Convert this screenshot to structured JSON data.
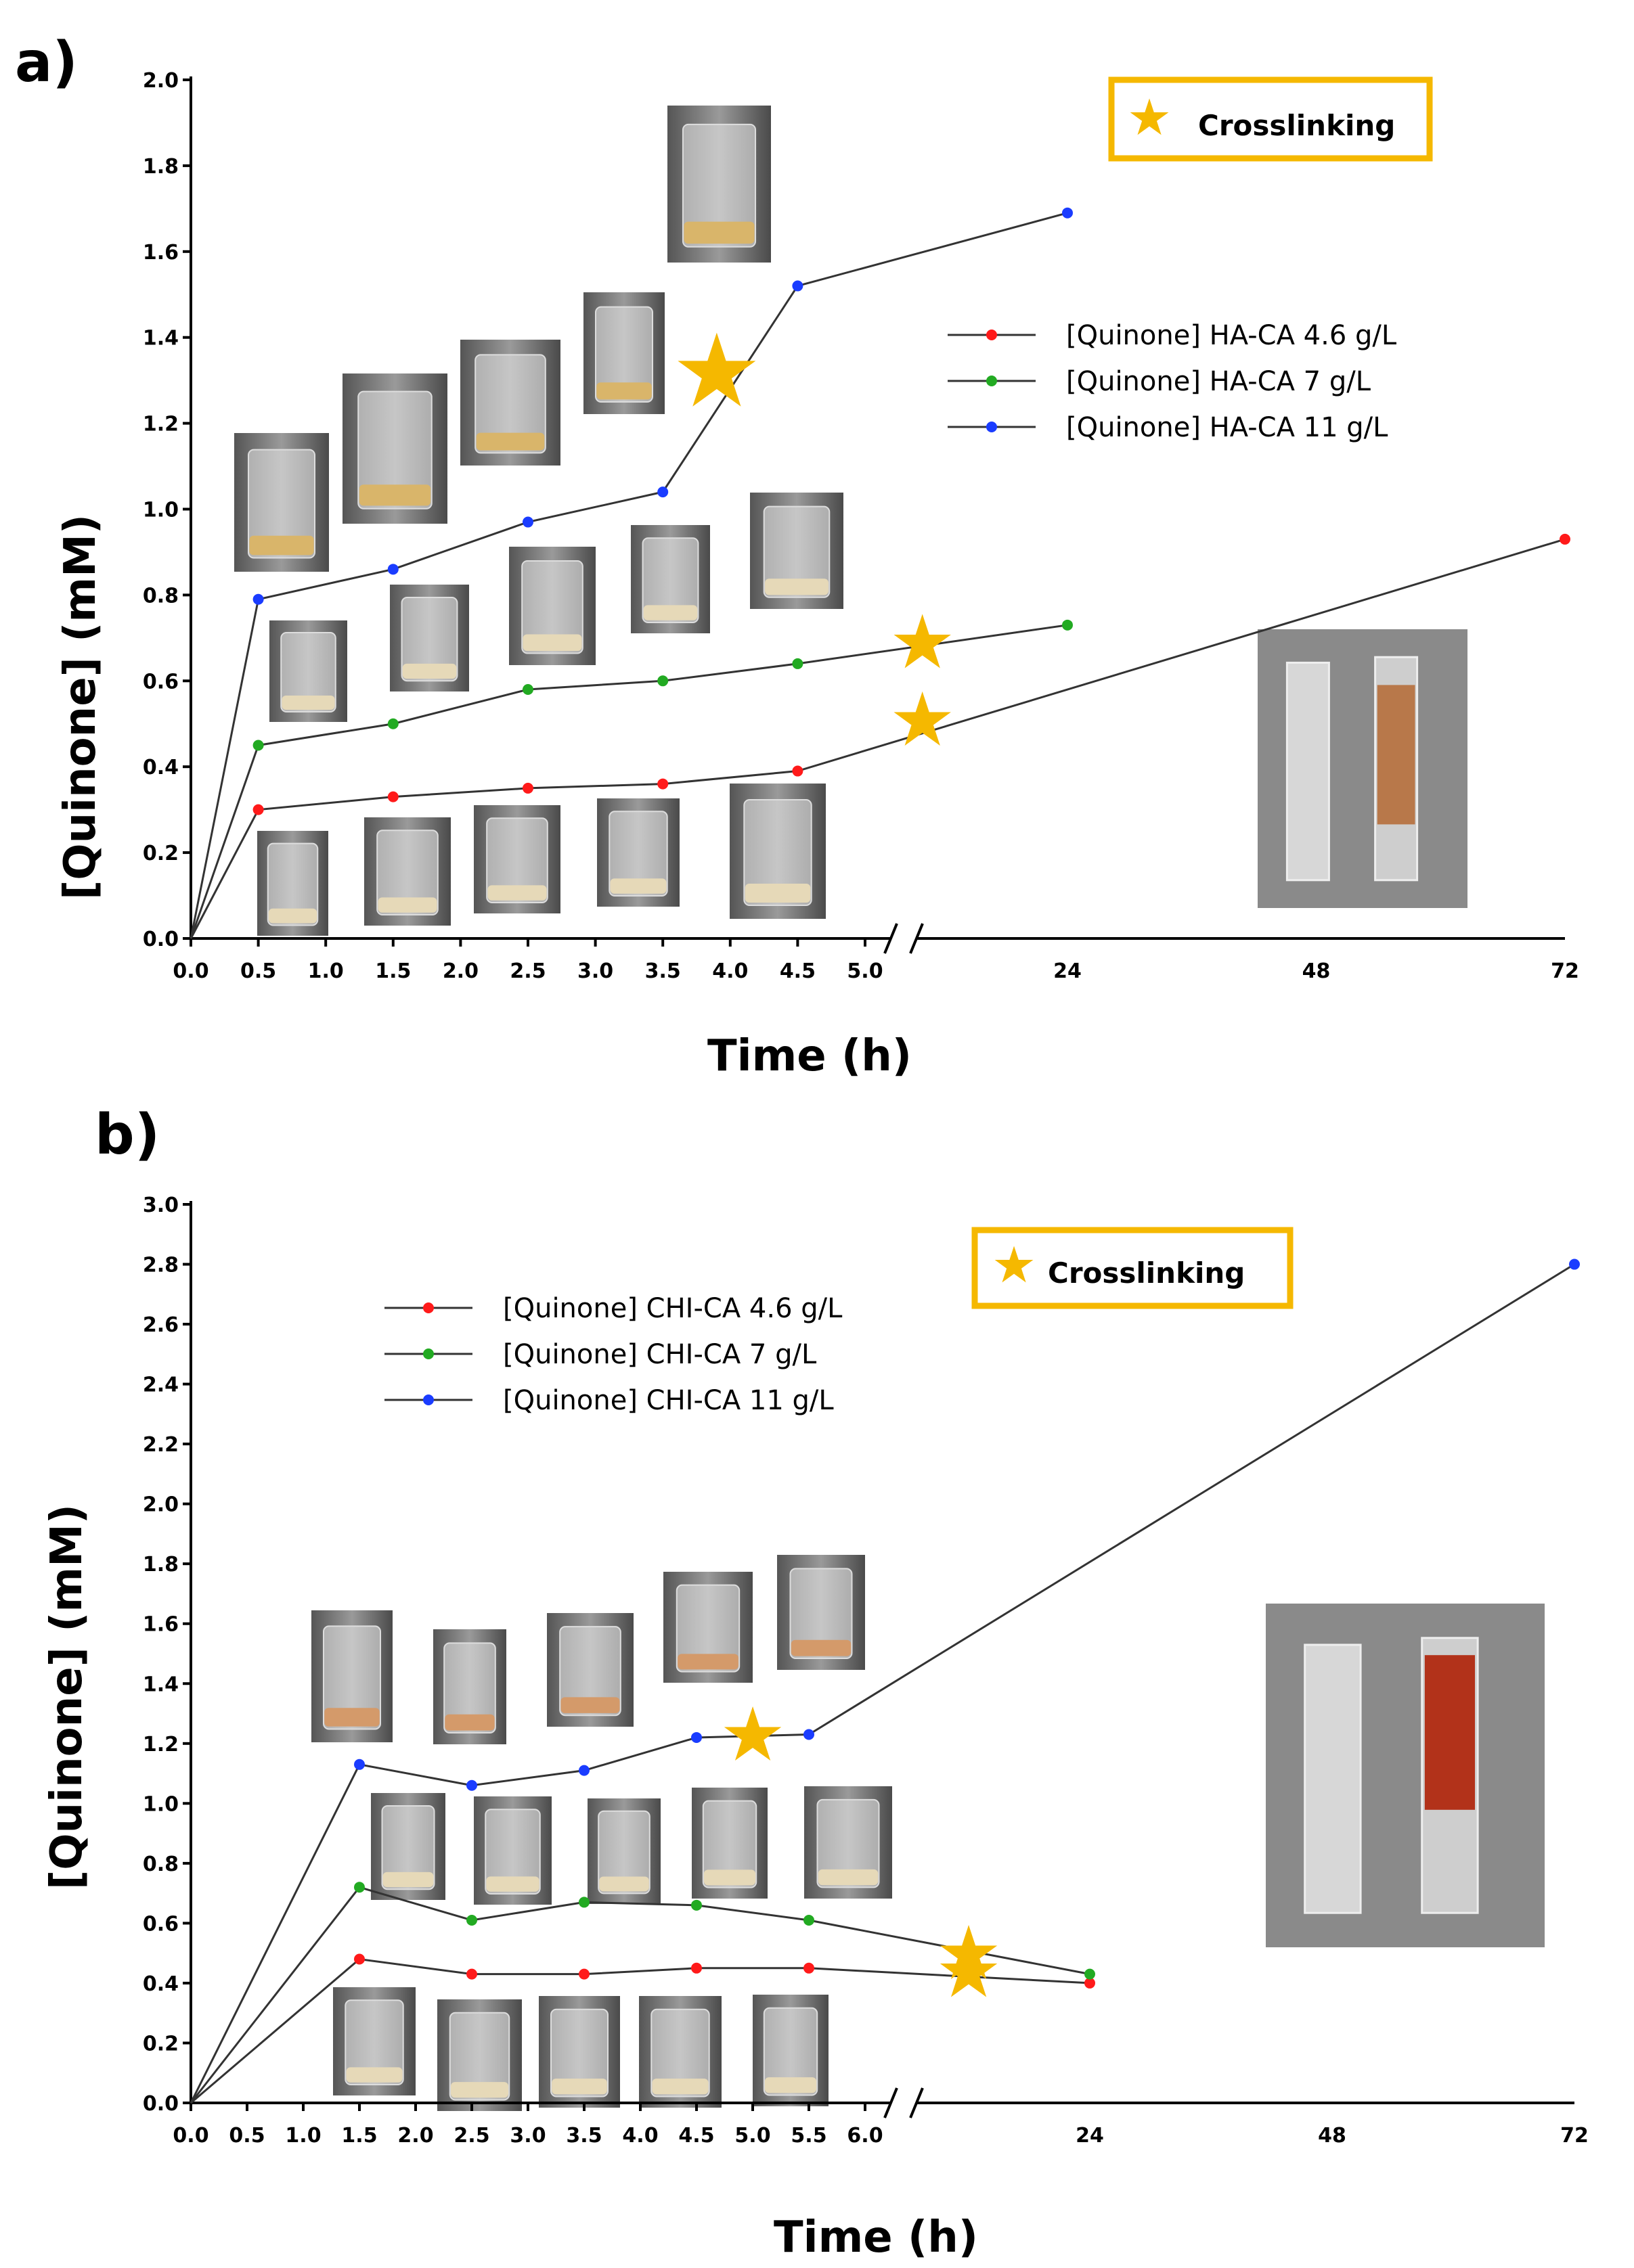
{
  "chart_data": [
    {
      "panel": "a)",
      "type": "line",
      "xlabel": "Time (h)",
      "ylabel": "[Quinone] (mM)",
      "ylim": [
        0,
        2.0
      ],
      "y_ticks": [
        "0.0",
        "0.2",
        "0.4",
        "0.6",
        "0.8",
        "1.0",
        "1.2",
        "1.4",
        "1.6",
        "1.8",
        "2.0"
      ],
      "x_ticks_short": [
        "0.0",
        "0.5",
        "1.0",
        "1.5",
        "2.0",
        "2.5",
        "3.0",
        "3.5",
        "4.0",
        "4.5",
        "5.0"
      ],
      "x_ticks_long": [
        "24",
        "48",
        "72"
      ],
      "x_break": [
        5.0,
        24
      ],
      "annotation": "Crosslinking",
      "series": [
        {
          "name": "[Quinone] HA-CA 4.6 g/L",
          "color": "#ff1a1a",
          "x": [
            0.0,
            0.5,
            1.5,
            2.5,
            3.5,
            4.5,
            72
          ],
          "y": [
            0.0,
            0.3,
            0.33,
            0.35,
            0.36,
            0.39,
            0.93
          ]
        },
        {
          "name": "[Quinone] HA-CA 7 g/L",
          "color": "#22aa22",
          "x": [
            0.0,
            0.5,
            1.5,
            2.5,
            3.5,
            4.5,
            24
          ],
          "y": [
            0.0,
            0.45,
            0.5,
            0.58,
            0.6,
            0.64,
            0.73
          ]
        },
        {
          "name": "[Quinone] HA-CA 11 g/L",
          "color": "#1a3cff",
          "x": [
            0.0,
            0.5,
            1.5,
            2.5,
            3.5,
            4.5,
            24
          ],
          "y": [
            0.0,
            0.79,
            0.86,
            0.97,
            1.04,
            1.52,
            1.69
          ]
        }
      ],
      "crosslinking_markers": [
        {
          "series": "[Quinone] HA-CA 11 g/L",
          "x": 3.9,
          "y": 1.3
        },
        {
          "series": "[Quinone] HA-CA 7 g/L",
          "x": 10,
          "y": 0.69
        },
        {
          "series": "[Quinone] HA-CA 4.6 g/L",
          "x": 10,
          "y": 0.51
        }
      ]
    },
    {
      "panel": "b)",
      "type": "line",
      "xlabel": "Time (h)",
      "ylabel": "[Quinone] (mM)",
      "ylim": [
        0,
        3.0
      ],
      "y_ticks": [
        "0.0",
        "0.2",
        "0.4",
        "0.6",
        "0.8",
        "1.0",
        "1.2",
        "1.4",
        "1.6",
        "1.8",
        "2.0",
        "2.2",
        "2.4",
        "2.6",
        "2.8",
        "3.0"
      ],
      "x_ticks_short": [
        "0.0",
        "0.5",
        "1.0",
        "1.5",
        "2.0",
        "2.5",
        "3.0",
        "3.5",
        "4.0",
        "4.5",
        "5.0",
        "5.5",
        "6.0"
      ],
      "x_ticks_long": [
        "24",
        "48",
        "72"
      ],
      "x_break": [
        6.0,
        24
      ],
      "annotation": "Crosslinking",
      "series": [
        {
          "name": "[Quinone] CHI-CA 4.6 g/L",
          "color": "#ff1a1a",
          "x": [
            0.0,
            1.5,
            2.5,
            3.5,
            4.5,
            5.5,
            24
          ],
          "y": [
            0.0,
            0.48,
            0.43,
            0.43,
            0.45,
            0.45,
            0.4
          ]
        },
        {
          "name": "[Quinone] CHI-CA 7 g/L",
          "color": "#22aa22",
          "x": [
            0.0,
            1.5,
            2.5,
            3.5,
            4.5,
            5.5,
            24
          ],
          "y": [
            0.0,
            0.72,
            0.61,
            0.67,
            0.66,
            0.61,
            0.43
          ]
        },
        {
          "name": "[Quinone] CHI-CA 11 g/L",
          "color": "#1a3cff",
          "x": [
            0.0,
            1.5,
            2.5,
            3.5,
            4.5,
            5.5,
            72
          ],
          "y": [
            0.0,
            1.13,
            1.06,
            1.11,
            1.22,
            1.23,
            2.8
          ]
        }
      ],
      "crosslinking_markers": [
        {
          "series": "[Quinone] CHI-CA 11 g/L",
          "x": 5.0,
          "y": 1.23
        },
        {
          "series": "[Quinone] CHI-CA 7 g/L",
          "x": 12,
          "y": 0.5
        },
        {
          "series": "[Quinone] CHI-CA 4.6 g/L",
          "x": 12,
          "y": 0.44
        }
      ]
    }
  ],
  "colors": {
    "star": "#f5b800",
    "box_border": "#f5b800",
    "line": "#333333"
  }
}
